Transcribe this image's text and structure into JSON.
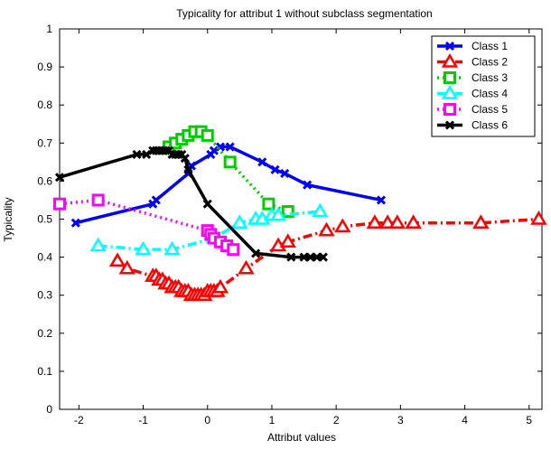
{
  "chart_data": {
    "type": "line",
    "title": "Typicality for attribut 1 without subclass segmentation",
    "xlabel": "Attribut values",
    "ylabel": "Typicality",
    "xlim": [
      -2.3,
      5.2
    ],
    "ylim": [
      0,
      1
    ],
    "xticks": [
      -2,
      -1,
      0,
      1,
      2,
      3,
      4,
      5
    ],
    "yticks": [
      0,
      0.1,
      0.2,
      0.3,
      0.4,
      0.5,
      0.6,
      0.7,
      0.8,
      0.9,
      1
    ],
    "xtick_labels": [
      "-2",
      "-1",
      "0",
      "1",
      "2",
      "3",
      "4",
      "5"
    ],
    "ytick_labels": [
      "0",
      "0.1",
      "0.2",
      "0.3",
      "0.4",
      "0.5",
      "0.6",
      "0.7",
      "0.8",
      "0.9",
      "1"
    ],
    "grid": false,
    "legend_position": "top-right",
    "series": [
      {
        "name": "Class 1",
        "color": "#0000ff",
        "line_style": "solid",
        "marker": "x",
        "x": [
          -2.05,
          -0.85,
          -0.8,
          -0.3,
          -0.25,
          0.05,
          0.1,
          0.2,
          0.35,
          0.85,
          1.05,
          1.2,
          1.55,
          2.7
        ],
        "y": [
          0.49,
          0.54,
          0.55,
          0.62,
          0.64,
          0.67,
          0.68,
          0.69,
          0.69,
          0.65,
          0.63,
          0.62,
          0.59,
          0.55
        ]
      },
      {
        "name": "Class 2",
        "color": "#ff0000",
        "line_style": "dashdot",
        "marker": "triangle",
        "x": [
          -1.4,
          -1.25,
          -0.85,
          -0.8,
          -0.75,
          -0.7,
          -0.65,
          -0.6,
          -0.55,
          -0.5,
          -0.45,
          -0.4,
          -0.35,
          -0.3,
          -0.25,
          -0.2,
          -0.15,
          -0.1,
          -0.05,
          0.0,
          0.05,
          0.1,
          0.15,
          0.2,
          0.6,
          1.1,
          1.25,
          1.85,
          2.1,
          2.6,
          2.8,
          2.95,
          3.2,
          4.25,
          5.15
        ],
        "y": [
          0.39,
          0.37,
          0.35,
          0.35,
          0.34,
          0.34,
          0.33,
          0.33,
          0.32,
          0.32,
          0.32,
          0.31,
          0.31,
          0.31,
          0.3,
          0.3,
          0.3,
          0.3,
          0.3,
          0.31,
          0.31,
          0.31,
          0.31,
          0.32,
          0.37,
          0.43,
          0.44,
          0.47,
          0.48,
          0.49,
          0.49,
          0.49,
          0.49,
          0.49,
          0.5
        ]
      },
      {
        "name": "Class 3",
        "color": "#00cc00",
        "line_style": "dotted",
        "marker": "square",
        "x": [
          -0.6,
          -0.5,
          -0.4,
          -0.3,
          -0.2,
          -0.1,
          0.0,
          0.35,
          0.95,
          1.25
        ],
        "y": [
          0.69,
          0.7,
          0.71,
          0.72,
          0.73,
          0.73,
          0.72,
          0.65,
          0.54,
          0.52
        ]
      },
      {
        "name": "Class 4",
        "color": "#00ffff",
        "line_style": "dashdot",
        "marker": "triangle",
        "x": [
          -1.7,
          -1.0,
          -0.55,
          0.1,
          0.5,
          0.75,
          0.85,
          1.0,
          1.1,
          1.75
        ],
        "y": [
          0.43,
          0.42,
          0.42,
          0.45,
          0.49,
          0.5,
          0.5,
          0.51,
          0.51,
          0.52
        ]
      },
      {
        "name": "Class 5",
        "color": "#ff00ff",
        "line_style": "dotted",
        "marker": "square",
        "x": [
          -2.3,
          -1.7,
          0.0,
          0.05,
          0.1,
          0.2,
          0.3,
          0.4
        ],
        "y": [
          0.54,
          0.55,
          0.47,
          0.46,
          0.45,
          0.44,
          0.43,
          0.42
        ]
      },
      {
        "name": "Class 6",
        "color": "#000000",
        "line_style": "solid",
        "marker": "x",
        "x": [
          -2.3,
          -1.1,
          -0.95,
          -0.85,
          -0.8,
          -0.75,
          -0.7,
          -0.65,
          -0.6,
          -0.55,
          -0.5,
          -0.45,
          -0.4,
          -0.35,
          -0.3,
          0.0,
          0.75,
          1.3,
          1.5,
          1.6,
          1.7,
          1.8
        ],
        "y": [
          0.61,
          0.67,
          0.67,
          0.68,
          0.68,
          0.68,
          0.68,
          0.68,
          0.68,
          0.67,
          0.67,
          0.67,
          0.67,
          0.66,
          0.63,
          0.54,
          0.41,
          0.4,
          0.4,
          0.4,
          0.4,
          0.4
        ]
      }
    ]
  }
}
